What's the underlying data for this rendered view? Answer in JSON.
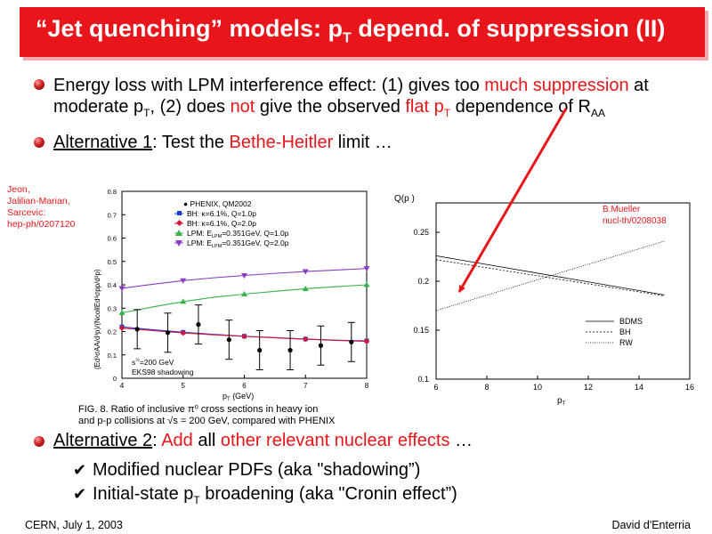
{
  "title": {
    "part1": "“Jet quenching” models: p",
    "sub": "T",
    "part2": " depend. of suppression (II)"
  },
  "bullet1": {
    "l1a": "Energy loss with LPM interference effect:  (1) gives too ",
    "l1b": "much suppression",
    "l1c": " at",
    "l2a": "moderate p",
    "l2b": "T",
    "l2c": ",   (2) does ",
    "l2d": "not",
    "l2e": " give the observed ",
    "l2f": "flat p",
    "l2g": "T",
    "l2h": " dependence of R",
    "l2i": "AA"
  },
  "bullet2": {
    "a": "Alternative 1",
    "b": ": Test the ",
    "c": "Bethe-Heitler",
    "d": " limit …"
  },
  "left_ref": [
    "Jeon,",
    "Jalilian-Marian,",
    "Sarcevic:",
    "hep-ph/0207120"
  ],
  "left_chart": {
    "yticks": [
      "0",
      "0.1",
      "0.2",
      "0.3",
      "0.4",
      "0.5",
      "0.6",
      "0.7",
      "0.8"
    ],
    "xticks": [
      "4",
      "5",
      "6",
      "7",
      "8"
    ],
    "xlabel": "p",
    "xlabel_sub": "T",
    "xlabel_unit": " (GeV)",
    "ylabel": "(Ed³σAA/d³p)/(NcollEd³σpp/d³p)",
    "legend": [
      "PHENIX, QM2002",
      "BH: κ=6.1%, Q=1.0p",
      "BH: κ=6.1%, Q=2.0p",
      "LPM: E",
      "LPM: E"
    ],
    "legend_lpm1_sub": "LPM",
    "legend_lpm1_rest": "=0.351GeV, Q=1.0p",
    "legend_lpm2_rest": "=0.351GeV, Q=2.0p",
    "note1a": "s",
    "note1b": "=200 GeV",
    "note2": "EKS98 shadowing",
    "caption1": "FIG. 8.  Ratio of inclusive π⁰ cross sections in heavy ion",
    "caption2": "and p-p collisions at √s = 200 GeV, compared with PHENIX"
  },
  "right_ref": [
    "B.Mueller",
    "nucl-th/0208038"
  ],
  "right_chart": {
    "ylabel": "Q(p )",
    "yticks": [
      "0.1",
      "0.15",
      "0.2",
      "0.25"
    ],
    "xticks": [
      "6",
      "8",
      "10",
      "12",
      "14",
      "16"
    ],
    "xlabel": "p",
    "xlabel_sub": "T",
    "legend": [
      "BDMS",
      "BH",
      "RW"
    ]
  },
  "bullet3": {
    "a": "Alternative 2",
    "b": ": ",
    "c": "Add",
    "d": " all ",
    "e": "other relevant nuclear effects",
    "f": " …"
  },
  "sub1": "Modified nuclear PDFs (aka \"shadowing”)",
  "sub2a": "Initial-state p",
  "sub2b": "T",
  "sub2c": " broadening (aka \"Cronin effect”)",
  "footer": {
    "left": "CERN, July 1, 2003",
    "right": "David d'Enterria"
  },
  "colors": {
    "accent": "#e8161b",
    "bh1": "#1a3bd6",
    "bh2": "#d6173c",
    "lpm1": "#36b24a",
    "lpm2": "#8a3cc4"
  },
  "chart_data": [
    {
      "type": "line",
      "xlabel": "pT (GeV)",
      "ylabel": "(Ed³σAA/d³p)/(NcollEd³σpp/d³p)",
      "xlim": [
        4,
        8
      ],
      "ylim": [
        0,
        0.8
      ],
      "series": [
        {
          "name": "PHENIX, QM2002",
          "x": [
            4.25,
            4.75,
            5.25,
            5.75,
            6.25,
            6.75,
            7.25,
            7.75
          ],
          "y": [
            0.21,
            0.195,
            0.23,
            0.165,
            0.12,
            0.12,
            0.14,
            0.155
          ]
        },
        {
          "name": "BH: κ=6.1%, Q=1.0p",
          "x": [
            4,
            4.5,
            5,
            5.5,
            6,
            6.5,
            7,
            7.5,
            8
          ],
          "y": [
            0.22,
            0.208,
            0.197,
            0.188,
            0.18,
            0.174,
            0.168,
            0.163,
            0.16
          ]
        },
        {
          "name": "BH: κ=6.1%, Q=2.0p",
          "x": [
            4,
            4.5,
            5,
            5.5,
            6,
            6.5,
            7,
            7.5,
            8
          ],
          "y": [
            0.215,
            0.204,
            0.194,
            0.186,
            0.179,
            0.173,
            0.167,
            0.162,
            0.158
          ]
        },
        {
          "name": "LPM: ELPM=0.351GeV, Q=1.0p",
          "x": [
            4,
            4.5,
            5,
            5.5,
            6,
            6.5,
            7,
            7.5,
            8
          ],
          "y": [
            0.28,
            0.305,
            0.328,
            0.347,
            0.36,
            0.372,
            0.383,
            0.392,
            0.4
          ]
        },
        {
          "name": "LPM: ELPM=0.351GeV, Q=2.0p",
          "x": [
            4,
            4.5,
            5,
            5.5,
            6,
            6.5,
            7,
            7.5,
            8
          ],
          "y": [
            0.385,
            0.402,
            0.418,
            0.43,
            0.44,
            0.449,
            0.457,
            0.463,
            0.47
          ]
        }
      ]
    },
    {
      "type": "line",
      "xlabel": "pT",
      "ylabel": "Q(p )",
      "xlim": [
        6,
        16
      ],
      "ylim": [
        0.1,
        0.28
      ],
      "series": [
        {
          "name": "BDMS",
          "x": [
            6,
            15
          ],
          "y": [
            0.226,
            0.186
          ]
        },
        {
          "name": "BH",
          "x": [
            6,
            15
          ],
          "y": [
            0.222,
            0.185
          ]
        },
        {
          "name": "RW",
          "x": [
            6,
            15
          ],
          "y": [
            0.17,
            0.241
          ]
        }
      ]
    }
  ]
}
